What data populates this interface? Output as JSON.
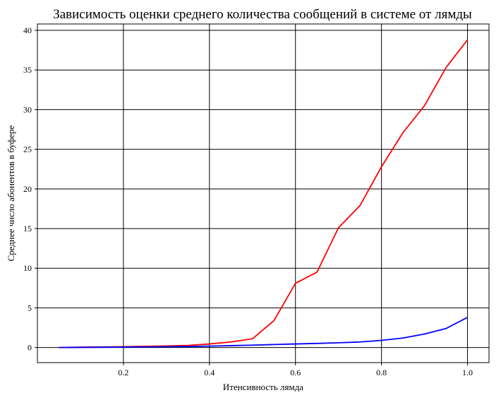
{
  "chart_data": {
    "type": "line",
    "title": "Зависимость оценки среднего количества сообщений в системе от лямды",
    "xlabel": "Итенсивность лямда",
    "ylabel": "Среднее число абонентов в буфере",
    "xlim": [
      0.0,
      1.05
    ],
    "ylim": [
      -1.9,
      40.8
    ],
    "grid": true,
    "legend": "none",
    "x_ticks": [
      0.2,
      0.4,
      0.6,
      0.8,
      1.0
    ],
    "x_tick_labels": [
      "0.2",
      "0.4",
      "0.6",
      "0.8",
      "1.0"
    ],
    "y_ticks": [
      0,
      5,
      10,
      15,
      20,
      25,
      30,
      35,
      40
    ],
    "y_tick_labels": [
      "0",
      "5",
      "10",
      "15",
      "20",
      "25",
      "30",
      "35",
      "40"
    ],
    "x": [
      0.05,
      0.1,
      0.15,
      0.2,
      0.25,
      0.3,
      0.35,
      0.4,
      0.45,
      0.5,
      0.55,
      0.6,
      0.65,
      0.7,
      0.75,
      0.8,
      0.85,
      0.9,
      0.95,
      1.0
    ],
    "series": [
      {
        "color": "#ff0000",
        "values": [
          0.0,
          0.05,
          0.08,
          0.1,
          0.15,
          0.2,
          0.27,
          0.45,
          0.7,
          1.1,
          3.4,
          8.1,
          9.5,
          15.1,
          17.9,
          22.8,
          27.1,
          30.5,
          35.3,
          38.8
        ]
      },
      {
        "color": "#0000ff",
        "values": [
          0.0,
          0.02,
          0.04,
          0.06,
          0.08,
          0.1,
          0.13,
          0.18,
          0.24,
          0.3,
          0.38,
          0.45,
          0.52,
          0.6,
          0.7,
          0.9,
          1.2,
          1.7,
          2.4,
          3.8
        ]
      }
    ]
  }
}
